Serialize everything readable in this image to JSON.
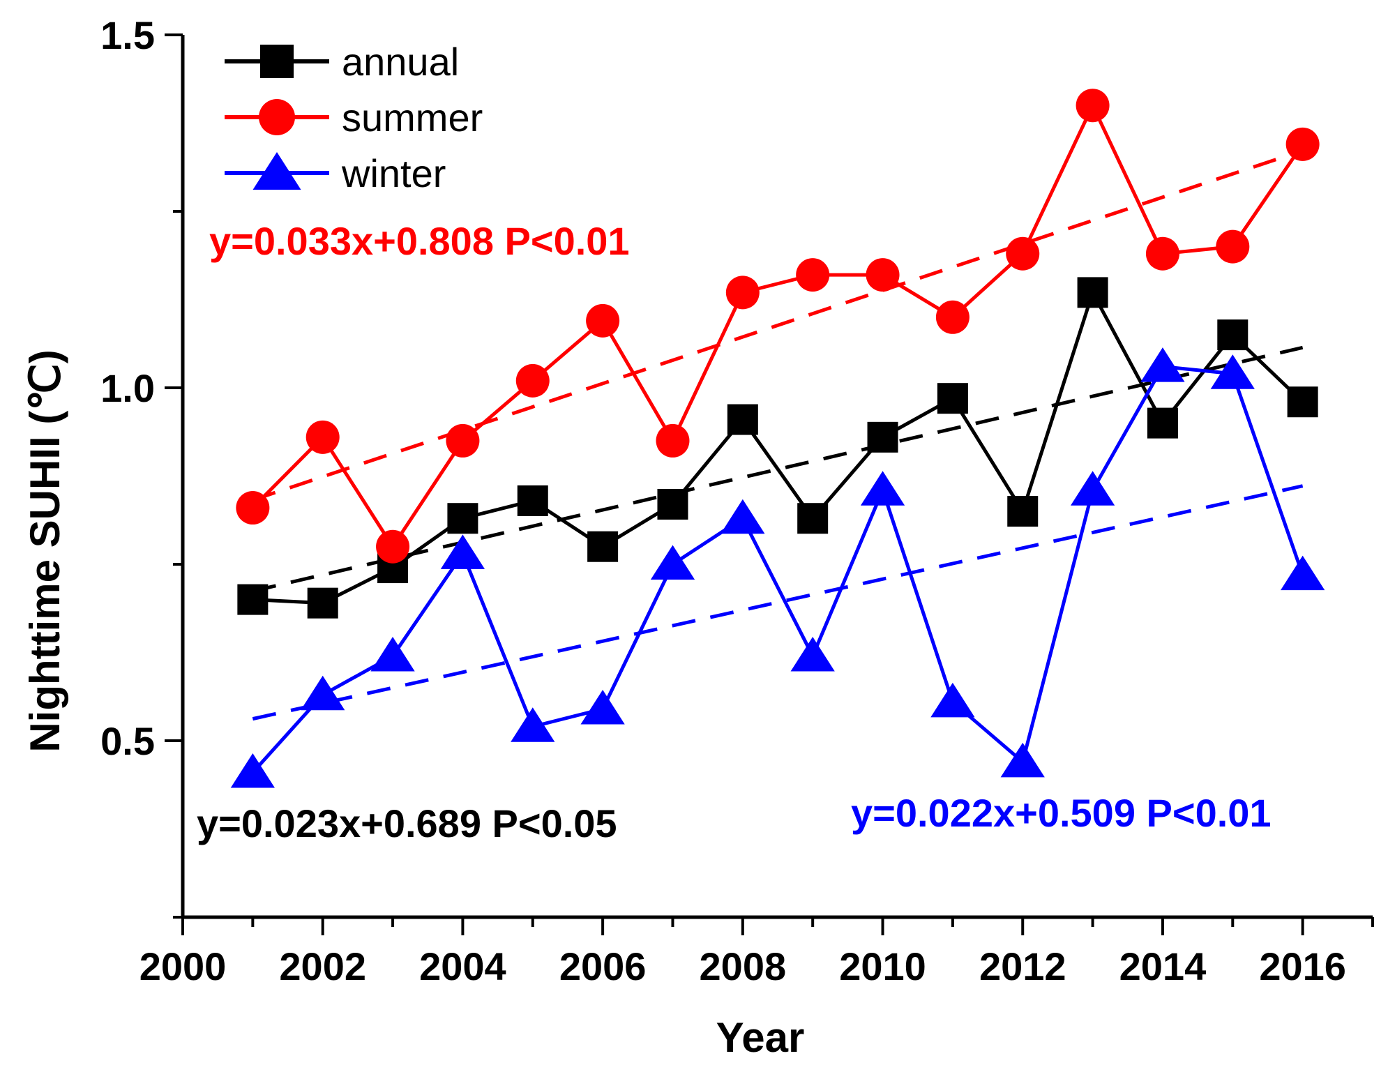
{
  "chart_data": {
    "type": "line",
    "xlabel": "Year",
    "ylabel": "Nighttime SUHII (℃)",
    "xlim": [
      2000,
      2017
    ],
    "ylim": [
      0.25,
      1.5
    ],
    "x_ticks": [
      2000,
      2002,
      2004,
      2006,
      2008,
      2010,
      2012,
      2014,
      2016
    ],
    "y_ticks": [
      "0.5",
      "1.0",
      "1.5"
    ],
    "x": [
      2001,
      2002,
      2003,
      2004,
      2005,
      2006,
      2007,
      2008,
      2009,
      2010,
      2011,
      2012,
      2013,
      2014,
      2015,
      2016
    ],
    "series": [
      {
        "name": "annual",
        "color": "#000000",
        "marker": "square",
        "values": [
          0.7,
          0.695,
          0.745,
          0.815,
          0.84,
          0.775,
          0.835,
          0.955,
          0.815,
          0.93,
          0.985,
          0.825,
          1.135,
          0.95,
          1.075,
          0.98
        ],
        "trend": {
          "slope": 0.023,
          "intercept": 0.689,
          "label": "y=0.023x+0.689 P<0.05"
        }
      },
      {
        "name": "summer",
        "color": "#ff0000",
        "marker": "circle",
        "values": [
          0.83,
          0.93,
          0.775,
          0.925,
          1.01,
          1.095,
          0.925,
          1.135,
          1.16,
          1.16,
          1.1,
          1.19,
          1.4,
          1.19,
          1.2,
          1.345
        ],
        "trend": {
          "slope": 0.033,
          "intercept": 0.808,
          "label": "y=0.033x+0.808 P<0.01"
        }
      },
      {
        "name": "winter",
        "color": "#0000ff",
        "marker": "triangle",
        "values": [
          0.455,
          0.565,
          0.62,
          0.765,
          0.52,
          0.545,
          0.75,
          0.815,
          0.62,
          0.855,
          0.555,
          0.47,
          0.855,
          1.03,
          1.02,
          0.735
        ],
        "trend": {
          "slope": 0.022,
          "intercept": 0.509,
          "label": "y=0.022x+0.509 P<0.01"
        }
      }
    ],
    "legend": {
      "position": "top-left",
      "entries": [
        "annual",
        "summer",
        "winter"
      ]
    },
    "grid": false
  }
}
